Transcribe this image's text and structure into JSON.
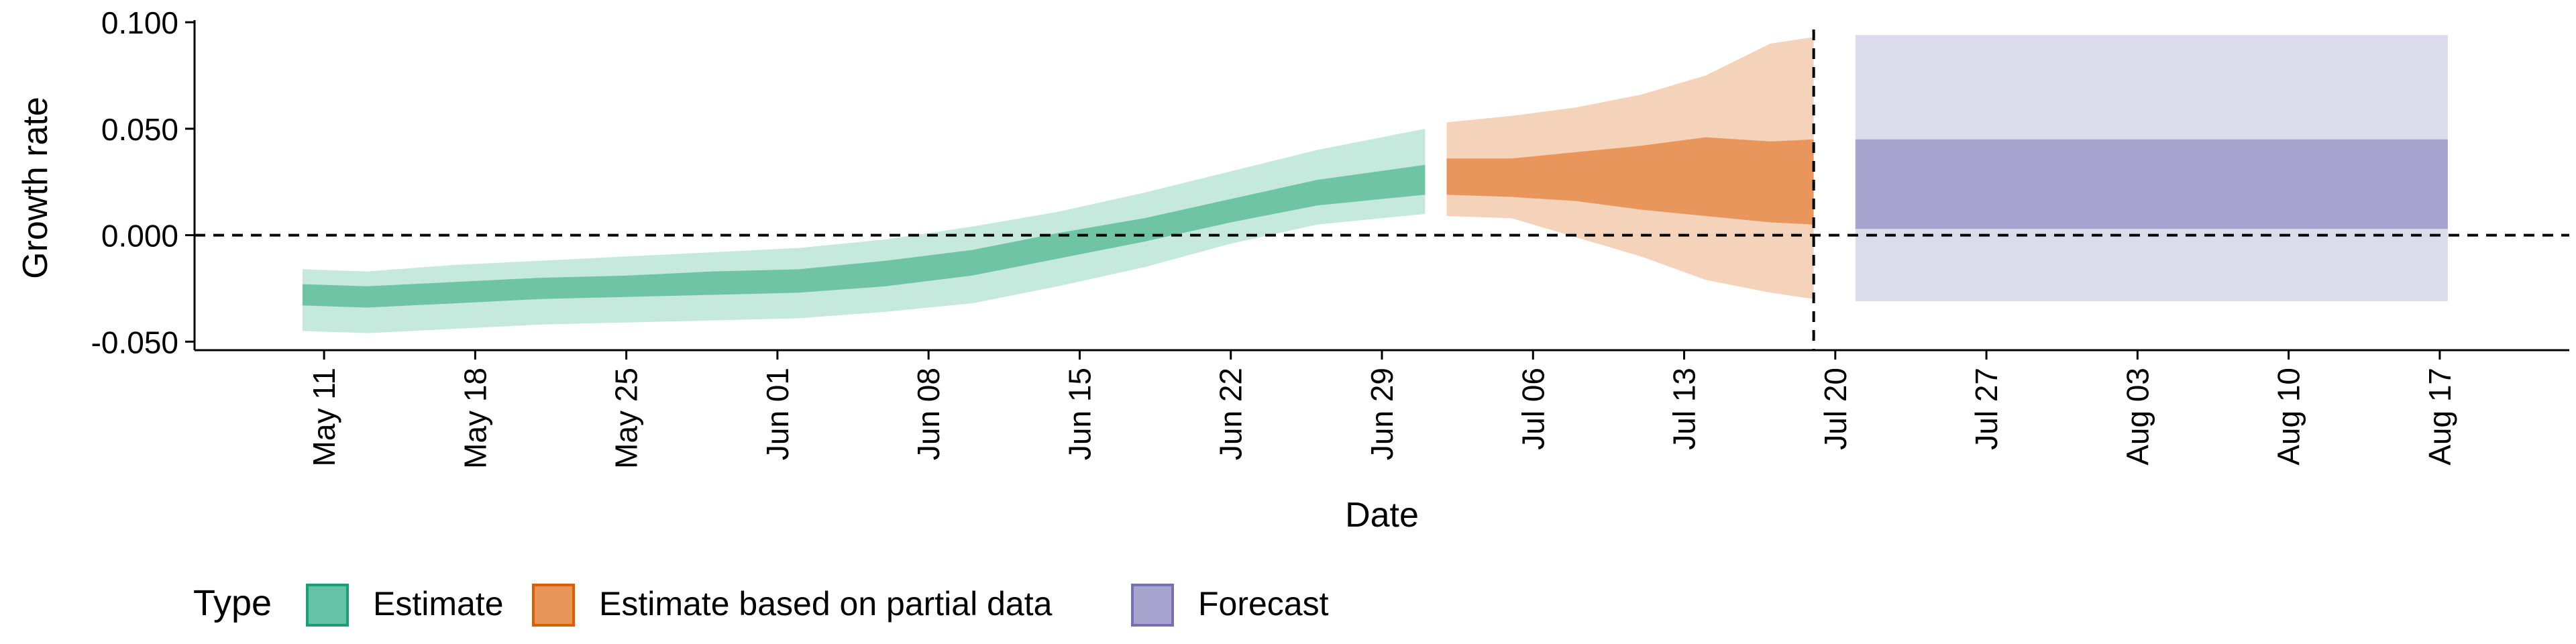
{
  "chart_data": {
    "type": "area",
    "xlabel": "Date",
    "ylabel": "Growth rate",
    "ylim": [
      -0.054,
      0.101
    ],
    "y_ticks": [
      {
        "value": -0.05,
        "label": "-0.050"
      },
      {
        "value": 0.0,
        "label": "0.000"
      },
      {
        "value": 0.05,
        "label": "0.050"
      },
      {
        "value": 0.1,
        "label": "0.100"
      }
    ],
    "x_range": [
      "2020-05-05",
      "2020-08-23"
    ],
    "x_ticks": [
      {
        "date": "2020-05-11",
        "label": "May 11"
      },
      {
        "date": "2020-05-18",
        "label": "May 18"
      },
      {
        "date": "2020-05-25",
        "label": "May 25"
      },
      {
        "date": "2020-06-01",
        "label": "Jun 01"
      },
      {
        "date": "2020-06-08",
        "label": "Jun 08"
      },
      {
        "date": "2020-06-15",
        "label": "Jun 15"
      },
      {
        "date": "2020-06-22",
        "label": "Jun 22"
      },
      {
        "date": "2020-06-29",
        "label": "Jun 29"
      },
      {
        "date": "2020-07-06",
        "label": "Jul 06"
      },
      {
        "date": "2020-07-13",
        "label": "Jul 13"
      },
      {
        "date": "2020-07-20",
        "label": "Jul 20"
      },
      {
        "date": "2020-07-27",
        "label": "Jul 27"
      },
      {
        "date": "2020-08-03",
        "label": "Aug 03"
      },
      {
        "date": "2020-08-10",
        "label": "Aug 10"
      },
      {
        "date": "2020-08-17",
        "label": "Aug 17"
      }
    ],
    "horizontal_reference_line": {
      "value": 0.0,
      "style": "dashed"
    },
    "vertical_reference_line": {
      "date": "2020-07-19",
      "style": "dashed"
    },
    "grid": false,
    "legend": {
      "position": "bottom-left",
      "title": "Type",
      "entries": [
        {
          "label": "Estimate",
          "color": "#66c2a5",
          "border": "#1b9e77"
        },
        {
          "label": "Estimate based on partial data",
          "color": "#e8955a",
          "border": "#d95f02"
        },
        {
          "label": "Forecast",
          "color": "#a8a4d0",
          "border": "#7570b3"
        }
      ]
    },
    "series": [
      {
        "name": "Estimate",
        "colors": {
          "outer": "#c6e9dd",
          "inner": "#6ec4a5"
        },
        "points": [
          {
            "x": "2020-05-10",
            "outer_low": -0.045,
            "inner_low": -0.033,
            "inner_high": -0.023,
            "outer_high": -0.016
          },
          {
            "x": "2020-05-13",
            "outer_low": -0.046,
            "inner_low": -0.034,
            "inner_high": -0.024,
            "outer_high": -0.017
          },
          {
            "x": "2020-05-17",
            "outer_low": -0.044,
            "inner_low": -0.032,
            "inner_high": -0.022,
            "outer_high": -0.014
          },
          {
            "x": "2020-05-21",
            "outer_low": -0.042,
            "inner_low": -0.03,
            "inner_high": -0.02,
            "outer_high": -0.012
          },
          {
            "x": "2020-05-25",
            "outer_low": -0.041,
            "inner_low": -0.029,
            "inner_high": -0.019,
            "outer_high": -0.01
          },
          {
            "x": "2020-05-29",
            "outer_low": -0.04,
            "inner_low": -0.028,
            "inner_high": -0.017,
            "outer_high": -0.008
          },
          {
            "x": "2020-06-02",
            "outer_low": -0.039,
            "inner_low": -0.027,
            "inner_high": -0.016,
            "outer_high": -0.006
          },
          {
            "x": "2020-06-06",
            "outer_low": -0.036,
            "inner_low": -0.024,
            "inner_high": -0.012,
            "outer_high": -0.002
          },
          {
            "x": "2020-06-10",
            "outer_low": -0.032,
            "inner_low": -0.019,
            "inner_high": -0.007,
            "outer_high": 0.004
          },
          {
            "x": "2020-06-14",
            "outer_low": -0.024,
            "inner_low": -0.011,
            "inner_high": 0.001,
            "outer_high": 0.011
          },
          {
            "x": "2020-06-18",
            "outer_low": -0.015,
            "inner_low": -0.003,
            "inner_high": 0.008,
            "outer_high": 0.02
          },
          {
            "x": "2020-06-22",
            "outer_low": -0.004,
            "inner_low": 0.006,
            "inner_high": 0.017,
            "outer_high": 0.03
          },
          {
            "x": "2020-06-26",
            "outer_low": 0.005,
            "inner_low": 0.014,
            "inner_high": 0.026,
            "outer_high": 0.04
          },
          {
            "x": "2020-07-01",
            "outer_low": 0.01,
            "inner_low": 0.019,
            "inner_high": 0.033,
            "outer_high": 0.05
          }
        ]
      },
      {
        "name": "Estimate based on partial data",
        "colors": {
          "outer": "#f4d3ba",
          "inner": "#e8965c"
        },
        "points": [
          {
            "x": "2020-07-02",
            "outer_low": 0.009,
            "inner_low": 0.019,
            "inner_high": 0.036,
            "outer_high": 0.053
          },
          {
            "x": "2020-07-05",
            "outer_low": 0.008,
            "inner_low": 0.018,
            "inner_high": 0.036,
            "outer_high": 0.056
          },
          {
            "x": "2020-07-08",
            "outer_low": -0.001,
            "inner_low": 0.016,
            "inner_high": 0.039,
            "outer_high": 0.06
          },
          {
            "x": "2020-07-11",
            "outer_low": -0.01,
            "inner_low": 0.012,
            "inner_high": 0.042,
            "outer_high": 0.066
          },
          {
            "x": "2020-07-14",
            "outer_low": -0.021,
            "inner_low": 0.009,
            "inner_high": 0.046,
            "outer_high": 0.075
          },
          {
            "x": "2020-07-17",
            "outer_low": -0.027,
            "inner_low": 0.006,
            "inner_high": 0.044,
            "outer_high": 0.09
          },
          {
            "x": "2020-07-19",
            "outer_low": -0.03,
            "inner_low": 0.005,
            "inner_high": 0.045,
            "outer_high": 0.093
          }
        ]
      },
      {
        "name": "Forecast",
        "colors": {
          "outer": "#dcdbec",
          "inner": "#a8a4d0"
        },
        "points": [
          {
            "x": "2020-07-20",
            "outer_low": -0.031,
            "inner_low": 0.003,
            "inner_high": 0.045,
            "outer_high": 0.094
          },
          {
            "x": "2020-08-17",
            "outer_low": -0.031,
            "inner_low": 0.003,
            "inner_high": 0.045,
            "outer_high": 0.094
          }
        ]
      }
    ]
  }
}
